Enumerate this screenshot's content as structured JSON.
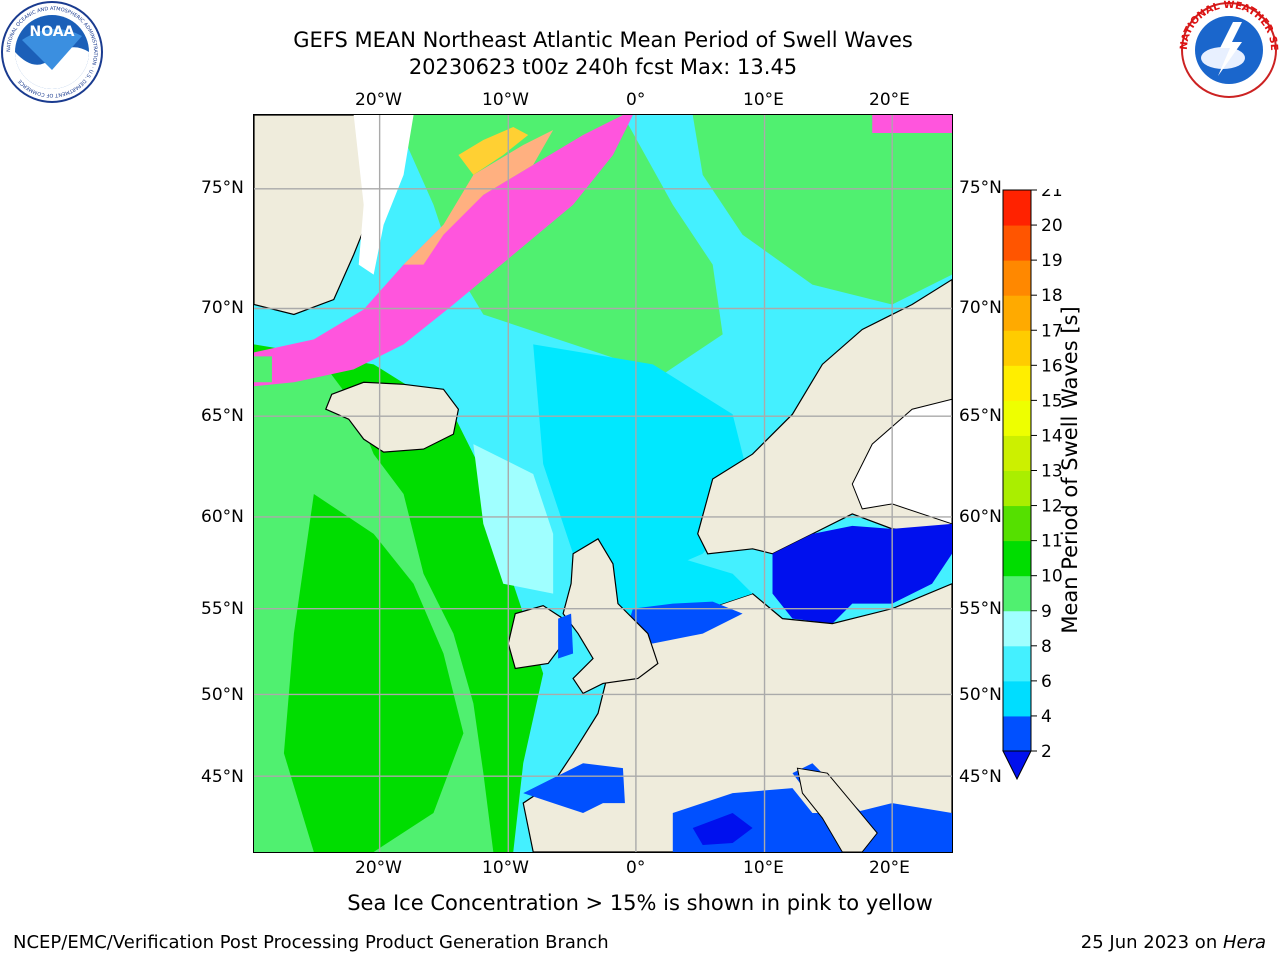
{
  "title": {
    "line1": "GEFS MEAN Northeast Atlantic Mean Period of Swell Waves",
    "line2": "20230623 t00z 240h fcst   Max: 13.45"
  },
  "logos": {
    "noaa": {
      "text": "NOAA",
      "ring_text": "NATIONAL OCEANIC AND ATMOSPHERIC ADMINISTRATION · U.S. DEPARTMENT OF COMMERCE",
      "icon": "noaa-logo-icon"
    },
    "nws": {
      "ring_text": "NATIONAL WEATHER SERVICE",
      "icon": "nws-logo-icon"
    }
  },
  "map": {
    "lon_labels": [
      "20°W",
      "10°W",
      "0°",
      "10°E",
      "20°E"
    ],
    "lat_labels": [
      "75°N",
      "70°N",
      "65°N",
      "60°N",
      "55°N",
      "50°N",
      "45°N"
    ],
    "colors": {
      "land": "#efecdc",
      "ice_pink": "#ff55dd",
      "ice_yellow": "#ffd033"
    }
  },
  "colorbar": {
    "label": "Mean Period of Swell Waves [s]",
    "ticks": [
      "2",
      "4",
      "6",
      "8",
      "9",
      "10",
      "11",
      "12",
      "13",
      "14",
      "15",
      "16",
      "17",
      "18",
      "19",
      "20",
      "21"
    ],
    "colors": [
      "#0050ff",
      "#00ddff",
      "#44f0ff",
      "#a0ffff",
      "#50f070",
      "#00dd00",
      "#55e000",
      "#aaee00",
      "#ccf000",
      "#eeff00",
      "#ffee00",
      "#ffcc00",
      "#ffaa00",
      "#ff8800",
      "#ff5500",
      "#ff2200"
    ],
    "under_color": "#0010ee"
  },
  "note": "Sea Ice Concentration > 15% is shown in pink to yellow",
  "footer": {
    "left": "NCEP/EMC/Verification Post Processing Product Generation Branch",
    "date": "25 Jun 2023 on ",
    "host": "Hera"
  }
}
